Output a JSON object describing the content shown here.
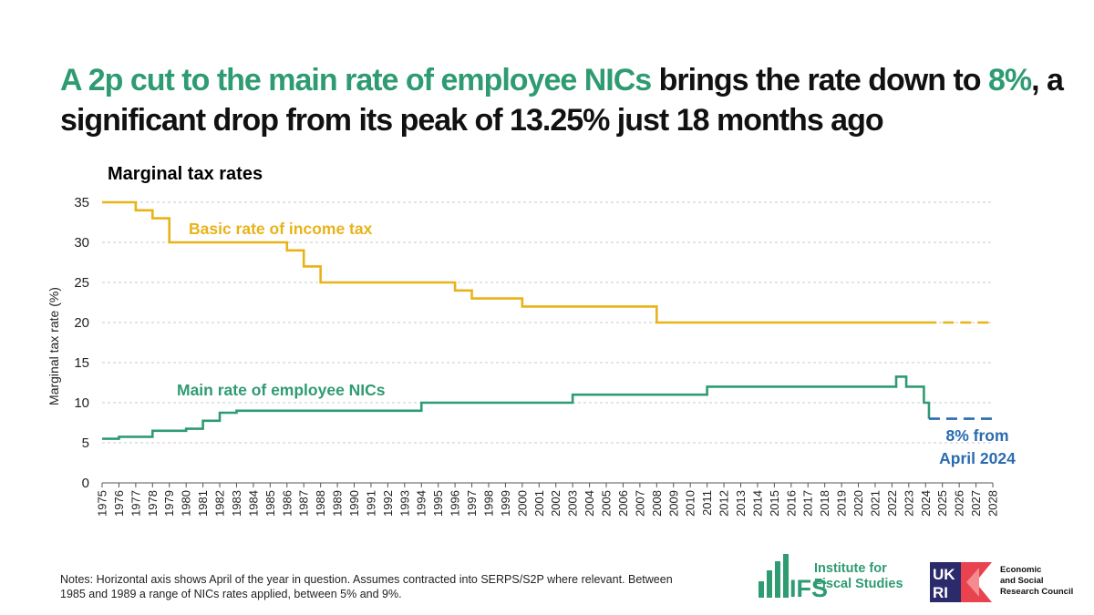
{
  "headline": {
    "part1": "A 2p cut to the main rate of employee NICs",
    "part2": " brings the rate down to ",
    "part3": "8%",
    "part4": ", a significant drop from its peak of 13.25% just 18 months ago"
  },
  "chart_data": {
    "type": "line",
    "title": "Marginal tax rates",
    "xlabel": "",
    "ylabel": "Marginal tax rate (%)",
    "xlim": [
      1975,
      2028
    ],
    "ylim": [
      0,
      35
    ],
    "yticks": [
      0,
      5,
      10,
      15,
      20,
      25,
      30,
      35
    ],
    "grid": true,
    "step": "post",
    "series": [
      {
        "name": "Basic rate of income tax",
        "color": "#e8b319",
        "style": "solid",
        "x": [
          1975,
          1977,
          1978,
          1979,
          1986,
          1987,
          1988,
          1996,
          1997,
          2000,
          2008,
          2024
        ],
        "y": [
          35,
          34,
          33,
          30,
          29,
          27,
          25,
          24,
          23,
          22,
          20,
          20
        ]
      },
      {
        "name": "Basic rate of income tax (projected)",
        "color": "#e8b319",
        "style": "dashed",
        "x": [
          2024,
          2028
        ],
        "y": [
          20,
          20
        ]
      },
      {
        "name": "Main rate of employee NICs",
        "color": "#2e9b72",
        "style": "solid",
        "x": [
          1975,
          1976,
          1978,
          1980,
          1981,
          1982,
          1983,
          1994,
          2003,
          2011,
          2022.25,
          2022.85,
          2023.9,
          2024.2
        ],
        "y": [
          5.5,
          5.75,
          6.5,
          6.75,
          7.75,
          8.75,
          9,
          10,
          11,
          12,
          13.25,
          12,
          10,
          8
        ]
      },
      {
        "name": "Main rate of employee NICs (from April 2024)",
        "color": "#2a6bb0",
        "style": "dashed",
        "x": [
          2024.2,
          2028
        ],
        "y": [
          8,
          8
        ]
      }
    ],
    "annotations": [
      {
        "text": "Basic rate of income tax",
        "color": "#e8b319"
      },
      {
        "text": "Main rate of employee NICs",
        "color": "#2e9b72"
      },
      {
        "text": "8% from",
        "color": "#2a6bb0"
      },
      {
        "text": "April 2024",
        "color": "#2a6bb0"
      }
    ]
  },
  "notes": "Notes: Horizontal axis shows April of the year in question. Assumes contracted into SERPS/S2P where relevant. Between 1985 and 1989 a range of NICs rates applied, between 5% and 9%.",
  "logos": {
    "ifs_mark": "IFS",
    "ifs_name_1": "Institute for",
    "ifs_name_2": "Fiscal Studies",
    "ukri_mark_1": "UK",
    "ukri_mark_2": "RI",
    "esrc_1": "Economic",
    "esrc_2": "and Social",
    "esrc_3": "Research Council"
  }
}
